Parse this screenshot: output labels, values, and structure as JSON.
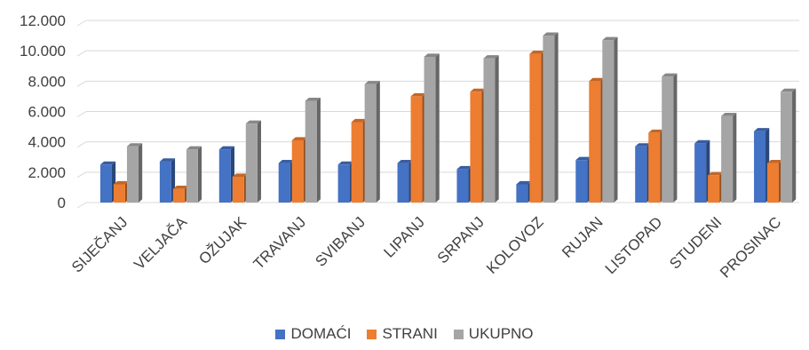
{
  "chart_data": {
    "type": "bar",
    "title": "",
    "xlabel": "",
    "ylabel": "",
    "ylim": [
      0,
      12000
    ],
    "y_ticks": [
      0,
      2000,
      4000,
      6000,
      8000,
      10000,
      12000
    ],
    "y_tick_labels": [
      "0",
      "2.000",
      "4.000",
      "6.000",
      "8.000",
      "10.000",
      "12.000"
    ],
    "grid": true,
    "legend_position": "bottom",
    "categories": [
      "SIJEČANJ",
      "VELJAČA",
      "OŽUJAK",
      "TRAVANJ",
      "SVIBANJ",
      "LIPANJ",
      "SRPANJ",
      "KOLOVOZ",
      "RUJAN",
      "LISTOPAD",
      "STUDENI",
      "PROSINAC"
    ],
    "series": [
      {
        "name": "DOMAĆI",
        "color": "#4472C4",
        "values": [
          2500,
          2700,
          3500,
          2600,
          2500,
          2600,
          2200,
          1200,
          2800,
          3700,
          3900,
          4700
        ]
      },
      {
        "name": "STRANI",
        "color": "#ED7D31",
        "values": [
          1200,
          900,
          1700,
          4100,
          5300,
          7000,
          7300,
          9800,
          8000,
          4600,
          1800,
          2600
        ]
      },
      {
        "name": "UKUPNO",
        "color": "#A5A5A5",
        "values": [
          3700,
          3500,
          5200,
          6700,
          7800,
          9600,
          9500,
          11000,
          10700,
          8300,
          5700,
          7300
        ]
      }
    ]
  }
}
